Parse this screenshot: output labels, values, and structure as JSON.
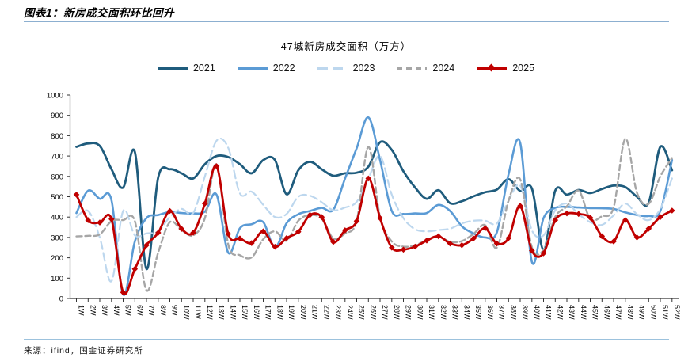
{
  "header": {
    "title": "图表1：新房成交面积环比回升"
  },
  "footer": {
    "source": "来源：ifind，国金证券研究所"
  },
  "colors": {
    "series_2021": "#1f5c7d",
    "series_2022": "#5b9bd5",
    "series_2023": "#bdd7ee",
    "series_2024": "#a6a6a6",
    "series_2025": "#c00000",
    "header_rule": "#8cafd0",
    "footer_rule": "#9cc2dd",
    "axis": "#333333"
  },
  "chart_data": {
    "type": "line",
    "title": "47城新房成交面积（万方）",
    "xlabel": "",
    "ylabel": "",
    "ylim": [
      0,
      1000
    ],
    "ytick_step": 100,
    "grid": false,
    "legend_position": "top",
    "categories": [
      "1W",
      "2W",
      "3W",
      "4W",
      "5W",
      "6W",
      "7W",
      "8W",
      "9W",
      "10W",
      "11W",
      "12W",
      "13W",
      "14W",
      "15W",
      "16W",
      "17W",
      "18W",
      "19W",
      "20W",
      "21W",
      "22W",
      "23W",
      "24W",
      "25W",
      "26W",
      "27W",
      "28W",
      "29W",
      "30W",
      "31W",
      "32W",
      "33W",
      "34W",
      "35W",
      "36W",
      "37W",
      "38W",
      "39W",
      "40W",
      "41W",
      "42W",
      "43W",
      "44W",
      "45W",
      "46W",
      "47W",
      "48W",
      "49W",
      "50W",
      "51W",
      "52W"
    ],
    "series": [
      {
        "name": "2021",
        "color": "#1f5c7d",
        "style": "solid",
        "width": 2.8,
        "marker": "none",
        "values": [
          745,
          762,
          750,
          635,
          545,
          720,
          145,
          595,
          635,
          615,
          590,
          660,
          700,
          695,
          660,
          615,
          680,
          680,
          512,
          630,
          672,
          635,
          603,
          615,
          618,
          648,
          768,
          730,
          625,
          545,
          490,
          532,
          468,
          478,
          502,
          522,
          535,
          586,
          528,
          540,
          240,
          530,
          510,
          533,
          518,
          538,
          555,
          548,
          500,
          470,
          745,
          630
        ]
      },
      {
        "name": "2022",
        "color": "#5b9bd5",
        "style": "solid",
        "width": 2.6,
        "marker": "none",
        "values": [
          420,
          530,
          490,
          483,
          20,
          280,
          395,
          410,
          425,
          420,
          418,
          427,
          510,
          225,
          345,
          365,
          375,
          250,
          370,
          414,
          430,
          445,
          436,
          590,
          739,
          890,
          680,
          430,
          415,
          418,
          420,
          460,
          430,
          355,
          320,
          300,
          325,
          610,
          765,
          180,
          395,
          445,
          450,
          447,
          444,
          443,
          440,
          423,
          410,
          405,
          430,
          680
        ]
      },
      {
        "name": "2023",
        "color": "#bdd7ee",
        "style": "dashed-long",
        "width": 2.2,
        "marker": "none",
        "values": [
          400,
          430,
          300,
          85,
          430,
          310,
          320,
          330,
          400,
          440,
          420,
          600,
          775,
          740,
          516,
          525,
          460,
          400,
          415,
          500,
          505,
          473,
          434,
          447,
          475,
          590,
          700,
          510,
          395,
          340,
          330,
          336,
          343,
          369,
          382,
          382,
          369,
          480,
          555,
          335,
          310,
          433,
          466,
          414,
          375,
          362,
          408,
          466,
          414,
          385,
          440,
          590
        ]
      },
      {
        "name": "2024",
        "color": "#a6a6a6",
        "style": "dashed",
        "width": 2.4,
        "marker": "none",
        "values": [
          305,
          308,
          315,
          380,
          385,
          380,
          40,
          226,
          375,
          336,
          310,
          395,
          660,
          265,
          213,
          202,
          291,
          330,
          284,
          382,
          410,
          392,
          295,
          320,
          382,
          745,
          400,
          280,
          255,
          262,
          287,
          305,
          278,
          282,
          317,
          360,
          250,
          480,
          585,
          252,
          239,
          401,
          453,
          530,
          390,
          404,
          447,
          785,
          520,
          465,
          600,
          690
        ]
      },
      {
        "name": "2025",
        "color": "#c00000",
        "style": "solid",
        "width": 2.8,
        "marker": "diamond",
        "values": [
          510,
          385,
          373,
          390,
          30,
          145,
          262,
          323,
          430,
          342,
          323,
          466,
          650,
          317,
          295,
          272,
          330,
          254,
          297,
          328,
          410,
          400,
          278,
          335,
          380,
          590,
          395,
          250,
          240,
          255,
          285,
          306,
          270,
          262,
          295,
          345,
          270,
          297,
          455,
          235,
          222,
          385,
          418,
          415,
          397,
          306,
          280,
          385,
          300,
          343,
          400,
          432
        ]
      }
    ]
  }
}
